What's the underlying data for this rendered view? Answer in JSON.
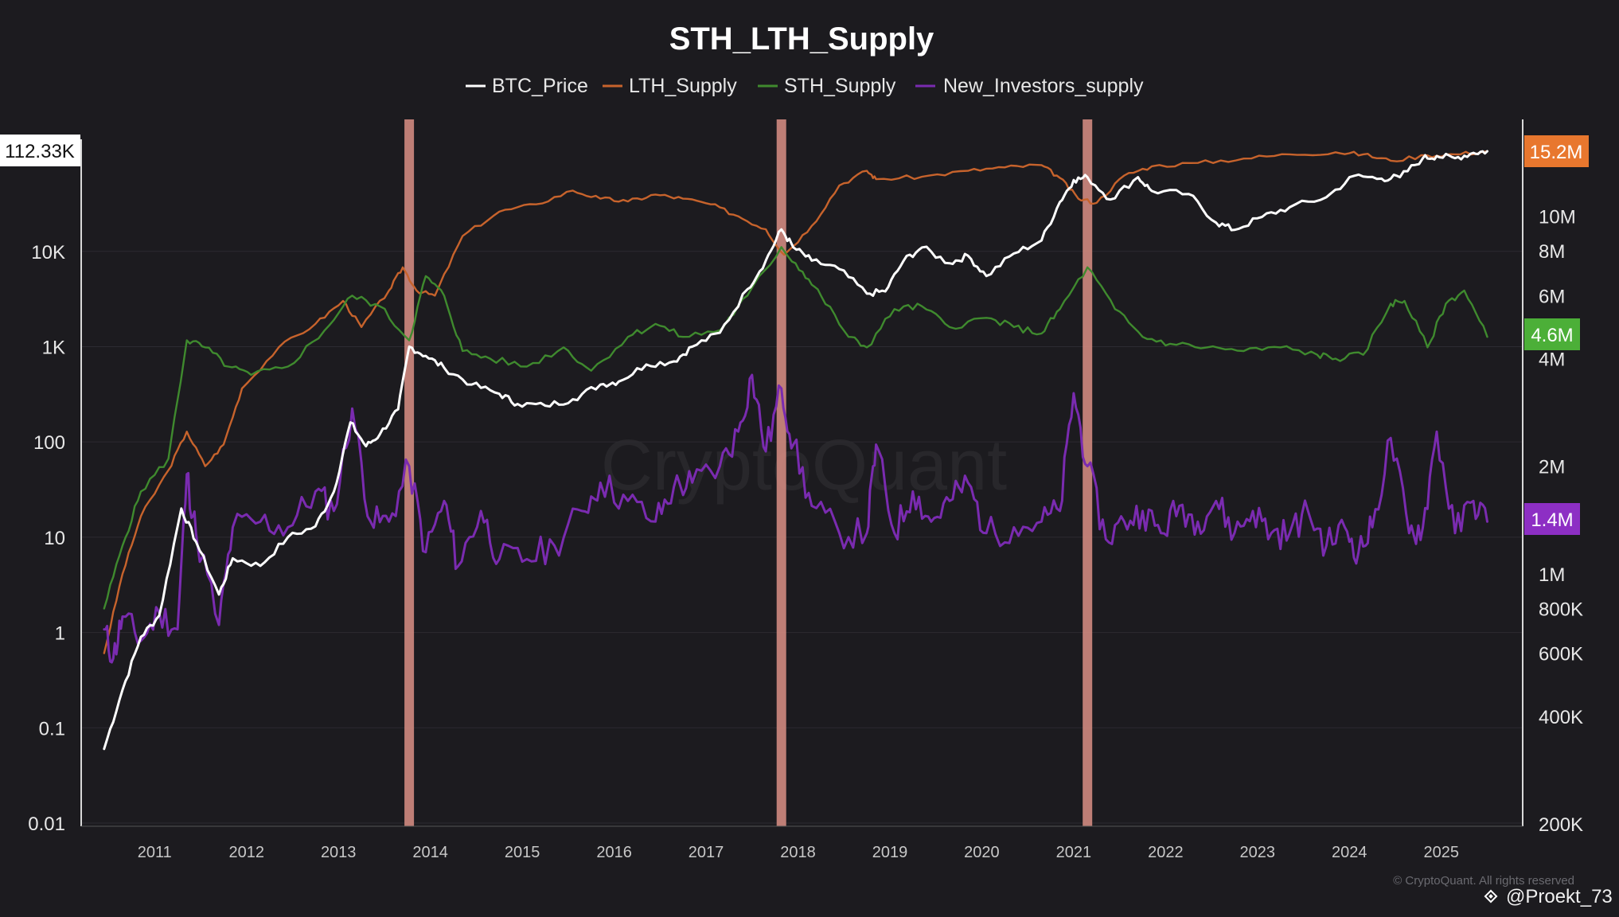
{
  "colors": {
    "background": "#1c1b1f",
    "btc_price": "#ffffff",
    "lth_supply": "#c7632c",
    "sth_supply": "#3f8a2e",
    "new_investors": "#7a2bb0",
    "marker": "#d08a80",
    "badge_lth": "#e8772e",
    "badge_sth": "#4caf38",
    "badge_new": "#8d2fc4"
  },
  "watermark": "CryptoQuant",
  "copyright": "© CryptoQuant. All rights reserved",
  "user_tag": "@Proekt_73",
  "chart_data": {
    "type": "line",
    "title": "STH_LTH_Supply",
    "legend": [
      "BTC_Price",
      "LTH_Supply",
      "STH_Supply",
      "New_Investors_supply"
    ],
    "x_ticks": [
      "2011",
      "2012",
      "2013",
      "2014",
      "2015",
      "2016",
      "2017",
      "2018",
      "2019",
      "2020",
      "2021",
      "2022",
      "2023",
      "2024",
      "2025"
    ],
    "x_range": [
      2010.55,
      2025.75
    ],
    "y_left": {
      "scale": "log",
      "range": [
        0.01,
        112330
      ],
      "ticks": [
        "10K",
        "1K",
        "100",
        "10",
        "1",
        "0.1",
        "0.01"
      ],
      "current_label": "112.33K"
    },
    "y_right": {
      "scale": "log",
      "range": [
        200000,
        15200000
      ],
      "ticks": [
        "10M",
        "8M",
        "6M",
        "4M",
        "2M",
        "1M",
        "800K",
        "600K",
        "400K",
        "200K"
      ],
      "badges": [
        "15.2M",
        "4.6M",
        "1.4M"
      ]
    },
    "vertical_markers": [
      2013.92,
      2017.97,
      2021.3
    ],
    "series": [
      {
        "name": "BTC_Price",
        "x": [
          2010.6,
          2010.8,
          2011.0,
          2011.2,
          2011.44,
          2011.6,
          2011.85,
          2012.0,
          2012.3,
          2012.6,
          2012.9,
          2013.1,
          2013.28,
          2013.45,
          2013.6,
          2013.8,
          2013.92,
          2014.1,
          2014.3,
          2014.6,
          2014.9,
          2015.1,
          2015.4,
          2015.7,
          2016.0,
          2016.2,
          2016.5,
          2016.8,
          2017.0,
          2017.3,
          2017.6,
          2017.8,
          2017.97,
          2018.1,
          2018.3,
          2018.6,
          2018.9,
          2019.1,
          2019.3,
          2019.5,
          2019.8,
          2020.0,
          2020.2,
          2020.5,
          2020.8,
          2021.0,
          2021.15,
          2021.3,
          2021.55,
          2021.85,
          2022.0,
          2022.4,
          2022.7,
          2022.9,
          2023.2,
          2023.5,
          2023.9,
          2024.2,
          2024.5,
          2024.7,
          2024.95,
          2025.1,
          2025.3,
          2025.5,
          2025.65
        ],
        "values": [
          0.06,
          0.25,
          0.9,
          1.5,
          20,
          9,
          2.5,
          6,
          5,
          10,
          13,
          30,
          160,
          90,
          120,
          220,
          1000,
          800,
          600,
          400,
          320,
          250,
          240,
          280,
          400,
          430,
          650,
          700,
          1000,
          1400,
          4000,
          8000,
          17000,
          11000,
          8000,
          6500,
          3600,
          3800,
          8000,
          11000,
          7500,
          9000,
          5500,
          9500,
          13000,
          33000,
          56000,
          60000,
          35000,
          60000,
          43000,
          40000,
          20000,
          16800,
          23000,
          29000,
          37000,
          62000,
          58000,
          60000,
          95000,
          100000,
          95000,
          108000,
          112330
        ]
      },
      {
        "name": "LTH_Supply",
        "x": [
          2010.6,
          2010.8,
          2011.0,
          2011.3,
          2011.5,
          2011.7,
          2011.9,
          2012.1,
          2012.5,
          2012.9,
          2013.2,
          2013.4,
          2013.7,
          2013.85,
          2014.0,
          2014.2,
          2014.5,
          2014.9,
          2015.3,
          2015.7,
          2016.0,
          2016.3,
          2016.6,
          2016.9,
          2017.2,
          2017.5,
          2017.8,
          2018.0,
          2018.3,
          2018.6,
          2018.9,
          2019.0,
          2019.5,
          2020.0,
          2020.4,
          2020.8,
          2021.0,
          2021.2,
          2021.4,
          2021.7,
          2022.0,
          2022.5,
          2023.0,
          2023.5,
          2024.0,
          2024.3,
          2024.6,
          2025.0,
          2025.3,
          2025.65
        ],
        "values": [
          600000,
          1000000,
          1450000,
          1950000,
          2500000,
          2000000,
          2300000,
          3300000,
          4300000,
          5000000,
          5800000,
          4900000,
          6200000,
          7200000,
          6200000,
          6000000,
          8800000,
          10300000,
          10800000,
          11800000,
          11200000,
          11000000,
          11500000,
          11200000,
          10800000,
          10000000,
          9200000,
          7800000,
          9400000,
          12200000,
          13400000,
          12700000,
          12900000,
          13400000,
          13700000,
          13900000,
          12800000,
          11200000,
          10900000,
          13000000,
          13800000,
          14100000,
          14500000,
          14900000,
          15100000,
          14900000,
          14300000,
          14800000,
          14900000,
          15200000
        ]
      },
      {
        "name": "STH_Supply",
        "x": [
          2010.6,
          2010.8,
          2011.0,
          2011.3,
          2011.5,
          2011.7,
          2011.95,
          2012.2,
          2012.6,
          2013.0,
          2013.3,
          2013.6,
          2013.92,
          2014.1,
          2014.3,
          2014.5,
          2014.8,
          2015.2,
          2015.6,
          2015.9,
          2016.3,
          2016.6,
          2016.9,
          2017.3,
          2017.6,
          2017.97,
          2018.2,
          2018.4,
          2018.7,
          2018.9,
          2019.2,
          2019.5,
          2019.8,
          2020.2,
          2020.5,
          2020.8,
          2021.0,
          2021.3,
          2021.6,
          2021.9,
          2022.2,
          2022.6,
          2023.0,
          2023.4,
          2023.8,
          2024.0,
          2024.3,
          2024.6,
          2024.75,
          2025.0,
          2025.2,
          2025.4,
          2025.65
        ],
        "values": [
          800000,
          1200000,
          1700000,
          2100000,
          4500000,
          4300000,
          3800000,
          3600000,
          3800000,
          4800000,
          6000000,
          5600000,
          4500000,
          6800000,
          6000000,
          4200000,
          4000000,
          3800000,
          4300000,
          3700000,
          4600000,
          5000000,
          4600000,
          4800000,
          6000000,
          8200000,
          7000000,
          6000000,
          4600000,
          4300000,
          5500000,
          5600000,
          4900000,
          5200000,
          4900000,
          4700000,
          5500000,
          7200000,
          5500000,
          4600000,
          4400000,
          4300000,
          4200000,
          4300000,
          4100000,
          4000000,
          4100000,
          5700000,
          5800000,
          4300000,
          5700000,
          6200000,
          4600000
        ]
      },
      {
        "name": "New_Investors_supply",
        "x": [
          2010.6,
          2010.7,
          2010.8,
          2011.0,
          2011.2,
          2011.4,
          2011.5,
          2011.6,
          2011.85,
          2012.0,
          2012.3,
          2012.6,
          2012.9,
          2013.1,
          2013.3,
          2013.5,
          2013.7,
          2013.92,
          2014.1,
          2014.3,
          2014.45,
          2014.7,
          2014.9,
          2015.2,
          2015.5,
          2015.8,
          2016.0,
          2016.3,
          2016.6,
          2016.8,
          2017.0,
          2017.3,
          2017.5,
          2017.65,
          2017.8,
          2017.97,
          2018.1,
          2018.3,
          2018.6,
          2018.9,
          2019.0,
          2019.2,
          2019.4,
          2019.6,
          2019.8,
          2020.0,
          2020.2,
          2020.5,
          2020.8,
          2021.0,
          2021.15,
          2021.3,
          2021.5,
          2021.7,
          2021.9,
          2022.1,
          2022.3,
          2022.5,
          2022.7,
          2022.9,
          2023.1,
          2023.3,
          2023.5,
          2023.7,
          2023.9,
          2024.1,
          2024.25,
          2024.4,
          2024.6,
          2024.8,
          2024.95,
          2025.1,
          2025.3,
          2025.5,
          2025.65
        ],
        "values": [
          700000,
          580000,
          760000,
          650000,
          780000,
          700000,
          1900000,
          1300000,
          720000,
          1350000,
          1400000,
          1350000,
          1700000,
          1500000,
          2900000,
          1400000,
          1400000,
          2000000,
          1150000,
          1600000,
          1050000,
          1500000,
          1100000,
          1100000,
          1200000,
          1500000,
          1800000,
          1600000,
          1400000,
          1750000,
          1800000,
          2000000,
          2500000,
          3600000,
          2200000,
          3300000,
          2300000,
          1550000,
          1300000,
          1300000,
          2300000,
          1300000,
          1700000,
          1400000,
          1600000,
          1800000,
          1300000,
          1350000,
          1400000,
          1500000,
          3200000,
          2000000,
          1250000,
          1400000,
          1500000,
          1300000,
          1550000,
          1400000,
          1600000,
          1300000,
          1500000,
          1300000,
          1300000,
          1500000,
          1200000,
          1350000,
          1150000,
          1350000,
          2400000,
          1300000,
          1350000,
          2500000,
          1300000,
          1600000,
          1400000
        ]
      }
    ]
  }
}
